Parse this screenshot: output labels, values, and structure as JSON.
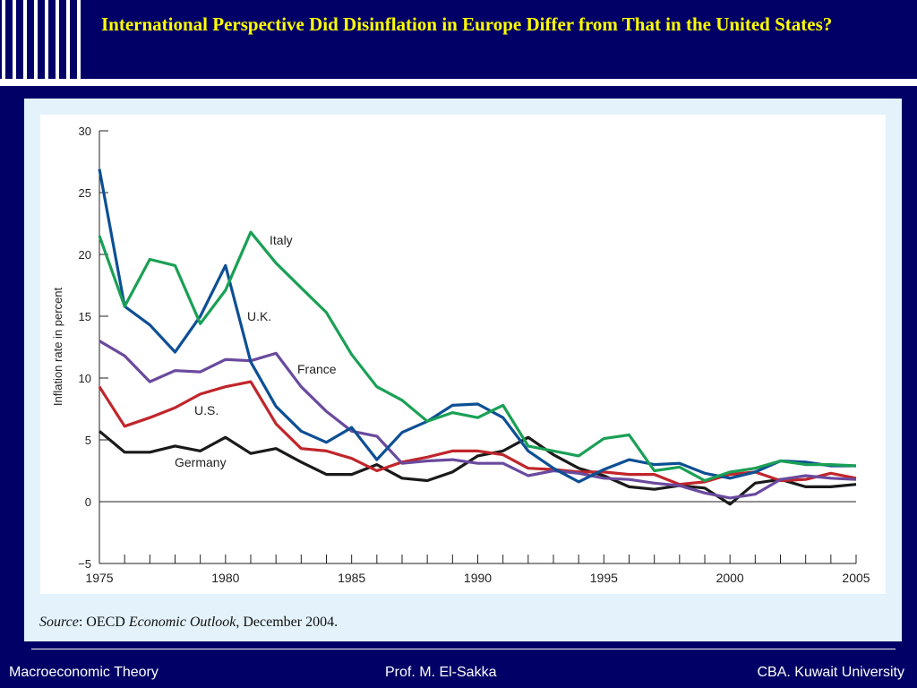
{
  "slide": {
    "title": "International Perspective  Did Disinflation in Europe Differ from That in the United States?",
    "source_prefix": "Source",
    "source_org": ": OECD ",
    "source_pub": "Economic Outlook",
    "source_date": ", December 2004."
  },
  "footer": {
    "left": "Macroeconomic Theory",
    "center": "Prof. M. El-Sakka",
    "right": "CBA. Kuwait University"
  },
  "colors": {
    "background": "#000066",
    "title": "#FFFF00",
    "italy": "#1AA055",
    "uk": "#0D4F94",
    "france": "#6A4A9E",
    "us": "#C0262B",
    "germany": "#1A1A1A"
  },
  "chart_data": {
    "type": "line",
    "title": "",
    "xlabel": "",
    "ylabel": "Inflation rate in percent",
    "xlim": [
      1975,
      2005
    ],
    "ylim": [
      -5,
      30
    ],
    "x_ticks": [
      1975,
      1980,
      1985,
      1990,
      1995,
      2000,
      2005
    ],
    "y_ticks": [
      -5,
      0,
      5,
      10,
      15,
      20,
      25,
      30
    ],
    "x": [
      1975,
      1976,
      1977,
      1978,
      1979,
      1980,
      1981,
      1982,
      1983,
      1984,
      1985,
      1986,
      1987,
      1988,
      1989,
      1990,
      1991,
      1992,
      1993,
      1994,
      1995,
      1996,
      1997,
      1998,
      1999,
      2000,
      2001,
      2002,
      2003,
      2004,
      2005
    ],
    "series": [
      {
        "name": "Italy",
        "color": "#1AA055",
        "values": [
          21.5,
          15.8,
          19.6,
          19.1,
          14.4,
          17.1,
          21.8,
          19.3,
          17.3,
          15.3,
          11.9,
          9.3,
          8.2,
          6.5,
          7.2,
          6.8,
          7.8,
          4.5,
          4.1,
          3.7,
          5.1,
          5.4,
          2.5,
          2.8,
          1.7,
          2.4,
          2.7,
          3.3,
          3.0,
          3.0,
          2.9
        ]
      },
      {
        "name": "U.K.",
        "color": "#0D4F94",
        "values": [
          26.9,
          15.8,
          14.3,
          12.1,
          15.0,
          19.1,
          11.3,
          7.7,
          5.7,
          4.8,
          6.0,
          3.4,
          5.6,
          6.5,
          7.8,
          7.9,
          6.8,
          4.1,
          2.7,
          1.6,
          2.6,
          3.4,
          3.0,
          3.1,
          2.3,
          1.9,
          2.4,
          3.3,
          3.2,
          2.9,
          2.9
        ]
      },
      {
        "name": "France",
        "color": "#6A4A9E",
        "values": [
          13.0,
          11.8,
          9.7,
          10.6,
          10.5,
          11.5,
          11.4,
          12.0,
          9.3,
          7.3,
          5.7,
          5.3,
          3.1,
          3.3,
          3.4,
          3.1,
          3.1,
          2.1,
          2.5,
          2.3,
          1.9,
          1.8,
          1.5,
          1.3,
          0.7,
          0.3,
          0.6,
          1.8,
          2.1,
          1.9,
          1.8
        ]
      },
      {
        "name": "U.S.",
        "color": "#C0262B",
        "values": [
          9.3,
          6.1,
          6.8,
          7.6,
          8.7,
          9.3,
          9.7,
          6.3,
          4.3,
          4.1,
          3.5,
          2.5,
          3.2,
          3.6,
          4.1,
          4.1,
          3.8,
          2.7,
          2.6,
          2.4,
          2.4,
          2.2,
          2.2,
          1.4,
          1.6,
          2.2,
          2.4,
          1.7,
          1.8,
          2.3,
          1.9
        ]
      },
      {
        "name": "Germany",
        "color": "#1A1A1A",
        "values": [
          5.7,
          4.0,
          4.0,
          4.5,
          4.1,
          5.2,
          3.9,
          4.3,
          3.2,
          2.2,
          2.2,
          3.0,
          1.9,
          1.7,
          2.4,
          3.7,
          4.1,
          5.2,
          3.8,
          2.7,
          2.1,
          1.2,
          1.0,
          1.3,
          1.1,
          -0.2,
          1.5,
          1.8,
          1.2,
          1.2,
          1.4
        ]
      }
    ],
    "annotations": [
      {
        "text": "Italy",
        "series": "Italy"
      },
      {
        "text": "U.K.",
        "series": "U.K."
      },
      {
        "text": "France",
        "series": "France"
      },
      {
        "text": "U.S.",
        "series": "U.S."
      },
      {
        "text": "Germany",
        "series": "Germany"
      }
    ]
  }
}
